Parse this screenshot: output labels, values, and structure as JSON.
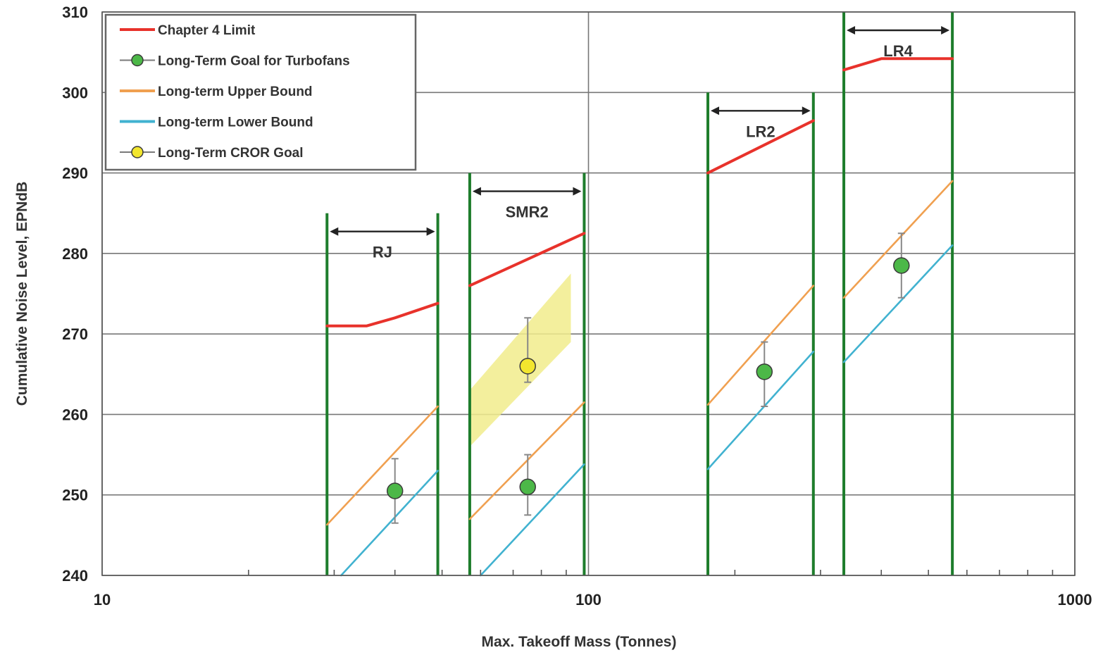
{
  "chart_data": {
    "type": "line",
    "xlabel": "Max. Takeoff Mass (Tonnes)",
    "ylabel": "Cumulative Noise Level, EPNdB",
    "xscale": "log",
    "xlim": [
      10,
      1000
    ],
    "ylim": [
      240,
      310
    ],
    "x_tick_labels": [
      "10",
      "100",
      "1000"
    ],
    "y_tick_labels": [
      "240",
      "250",
      "260",
      "270",
      "280",
      "290",
      "300",
      "310"
    ],
    "grid": true,
    "legend_position": "top-left",
    "colors": {
      "chapter4": "#e8322b",
      "turbofan_goal": "#4cb848",
      "upper": "#f0a050",
      "lower": "#41b2d0",
      "cror_goal": "#f2e62e",
      "cror_band": "#f1ec8c",
      "class_boundary": "#1e7d2c",
      "grid": "#777777",
      "error_bar": "#888888"
    },
    "legend": [
      {
        "key": "chapter4",
        "label": "Chapter 4 Limit"
      },
      {
        "key": "turbofan_goal",
        "label": "Long-Term Goal for Turbofans"
      },
      {
        "key": "upper",
        "label": "Long-term Upper Bound"
      },
      {
        "key": "lower",
        "label": "Long-term Lower Bound"
      },
      {
        "key": "cror_goal",
        "label": "Long-Term CROR Goal"
      }
    ],
    "classes": [
      {
        "label": "RJ",
        "x_min": 29,
        "x_max": 49,
        "top": 285
      },
      {
        "label": "SMR2",
        "x_min": 57,
        "x_max": 98,
        "top": 290
      },
      {
        "label": "LR2",
        "x_min": 176,
        "x_max": 290,
        "top": 300
      },
      {
        "label": "LR4",
        "x_min": 335,
        "x_max": 560,
        "top": 310
      }
    ],
    "series": [
      {
        "name": "Chapter 4 Limit",
        "key": "chapter4",
        "segments": [
          [
            [
              29,
              271
            ],
            [
              35,
              271
            ],
            [
              40,
              272
            ],
            [
              49,
              273.8
            ]
          ],
          [
            [
              57,
              276
            ],
            [
              98,
              282.5
            ]
          ],
          [
            [
              176,
              290
            ],
            [
              290,
              296.5
            ]
          ],
          [
            [
              335,
              302.8
            ],
            [
              400,
              304.2
            ],
            [
              560,
              304.2
            ]
          ]
        ]
      },
      {
        "name": "Long-term Upper Bound",
        "key": "upper",
        "segments": [
          [
            [
              29,
              246.3
            ],
            [
              49,
              261
            ]
          ],
          [
            [
              57,
              247
            ],
            [
              98,
              261.5
            ]
          ],
          [
            [
              176,
              261.2
            ],
            [
              290,
              276
            ]
          ],
          [
            [
              335,
              274.5
            ],
            [
              560,
              289
            ]
          ]
        ]
      },
      {
        "name": "Long-term Lower Bound",
        "key": "lower",
        "segments": [
          [
            [
              31,
              240
            ],
            [
              49,
              253
            ]
          ],
          [
            [
              60,
              240
            ],
            [
              98,
              253.8
            ]
          ],
          [
            [
              176,
              253.2
            ],
            [
              290,
              267.8
            ]
          ],
          [
            [
              335,
              266.5
            ],
            [
              560,
              281
            ]
          ]
        ]
      },
      {
        "name": "Long-Term Goal for Turbofans",
        "key": "turbofan_goal",
        "points": [
          {
            "x": 40,
            "y": 250.5,
            "lo": 246.5,
            "hi": 254.5
          },
          {
            "x": 75,
            "y": 251,
            "lo": 247.5,
            "hi": 255
          },
          {
            "x": 230,
            "y": 265.3,
            "lo": 261,
            "hi": 269
          },
          {
            "x": 440,
            "y": 278.5,
            "lo": 274.5,
            "hi": 282.5
          }
        ]
      },
      {
        "name": "Long-Term CROR Goal",
        "key": "cror_goal",
        "points": [
          {
            "x": 75,
            "y": 266,
            "lo": 264,
            "hi": 272
          }
        ]
      }
    ],
    "cror_band": [
      [
        57,
        256
      ],
      [
        57,
        263
      ],
      [
        92,
        277.5
      ],
      [
        92,
        269
      ]
    ]
  }
}
